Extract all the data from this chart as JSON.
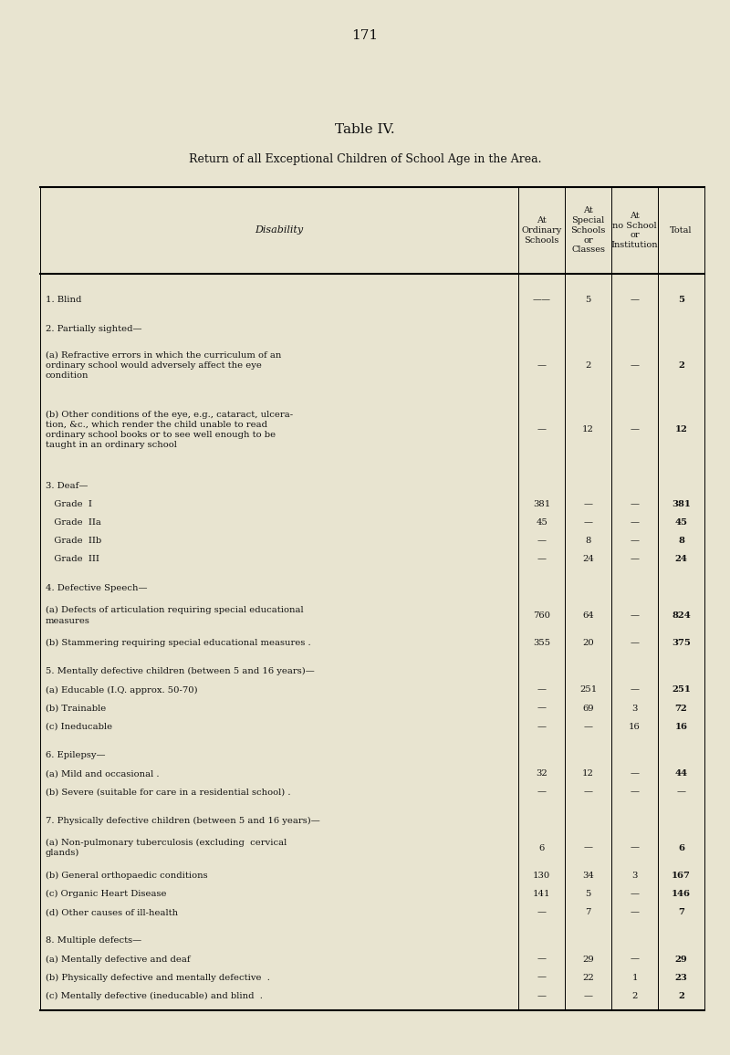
{
  "page_number": "171",
  "table_title": "Table IV.",
  "table_subtitle": "Return of all Exceptional Children of School Age in the Area.",
  "bg_color": "#e8e4d0",
  "text_color": "#111111",
  "rows": [
    {
      "label1": "1. Blind",
      "dots": true,
      "c1": "——",
      "c2": "5",
      "c3": "—",
      "c4": "5",
      "bold_c4": true,
      "section_gap": true,
      "label_lines": 1
    },
    {
      "label1": "2. Partially sighted—",
      "dots": false,
      "c1": "",
      "c2": "",
      "c3": "",
      "c4": "",
      "bold_c4": false,
      "section_gap": true,
      "label_lines": 1
    },
    {
      "label1": "(a) Refractive errors in which the curriculum of an",
      "label2": "ordinary school would adversely affect the eye",
      "label3": "condition",
      "dots": true,
      "c1": "—",
      "c2": "2",
      "c3": "—",
      "c4": "2",
      "bold_c4": true,
      "section_gap": false,
      "label_lines": 3
    },
    {
      "label1": "(b) Other conditions of the eye, e.g., cataract, ulcera-",
      "label2": "tion, &c., which render the child unable to read",
      "label3": "ordinary school books or to see well enough to be",
      "label4": "taught in an ordinary school",
      "dots": true,
      "c1": "—",
      "c2": "12",
      "c3": "—",
      "c4": "12",
      "bold_c4": true,
      "section_gap": false,
      "label_lines": 4
    },
    {
      "label1": "3. Deaf—",
      "dots": false,
      "c1": "",
      "c2": "",
      "c3": "",
      "c4": "",
      "bold_c4": false,
      "section_gap": true,
      "label_lines": 1
    },
    {
      "label1": "   Grade  I",
      "dots": true,
      "c1": "381",
      "c2": "—",
      "c3": "—",
      "c4": "381",
      "bold_c4": true,
      "section_gap": false,
      "label_lines": 1
    },
    {
      "label1": "   Grade  IIa",
      "dots": true,
      "c1": "45",
      "c2": "—",
      "c3": "—",
      "c4": "45",
      "bold_c4": true,
      "section_gap": false,
      "label_lines": 1
    },
    {
      "label1": "   Grade  IIb",
      "dots": true,
      "c1": "—",
      "c2": "8",
      "c3": "—",
      "c4": "8",
      "bold_c4": true,
      "section_gap": false,
      "label_lines": 1
    },
    {
      "label1": "   Grade  III",
      "dots": true,
      "c1": "—",
      "c2": "24",
      "c3": "—",
      "c4": "24",
      "bold_c4": true,
      "section_gap": false,
      "label_lines": 1
    },
    {
      "label1": "4. Defective Speech—",
      "dots": false,
      "c1": "",
      "c2": "",
      "c3": "",
      "c4": "",
      "bold_c4": false,
      "section_gap": true,
      "label_lines": 1
    },
    {
      "label1": "(a) Defects of articulation requiring special educational",
      "label2": "measures",
      "dots": true,
      "c1": "760",
      "c2": "64",
      "c3": "—",
      "c4": "824",
      "bold_c4": true,
      "section_gap": false,
      "label_lines": 2
    },
    {
      "label1": "(b) Stammering requiring special educational measures .",
      "dots": false,
      "c1": "355",
      "c2": "20",
      "c3": "—",
      "c4": "375",
      "bold_c4": true,
      "section_gap": false,
      "label_lines": 1
    },
    {
      "label1": "5. Mentally defective children (between 5 and 16 years)—",
      "dots": false,
      "c1": "",
      "c2": "",
      "c3": "",
      "c4": "",
      "bold_c4": false,
      "section_gap": true,
      "label_lines": 1
    },
    {
      "label1": "(a) Educable (I.Q. approx. 50-70)",
      "dots": true,
      "c1": "—",
      "c2": "251",
      "c3": "—",
      "c4": "251",
      "bold_c4": true,
      "section_gap": false,
      "label_lines": 1
    },
    {
      "label1": "(b) Trainable",
      "dots": true,
      "c1": "—",
      "c2": "69",
      "c3": "3",
      "c4": "72",
      "bold_c4": true,
      "section_gap": false,
      "label_lines": 1
    },
    {
      "label1": "(c) Ineducable",
      "dots": true,
      "c1": "—",
      "c2": "—",
      "c3": "16",
      "c4": "16",
      "bold_c4": true,
      "section_gap": false,
      "label_lines": 1
    },
    {
      "label1": "6. Epilepsy—",
      "dots": false,
      "c1": "",
      "c2": "",
      "c3": "",
      "c4": "",
      "bold_c4": false,
      "section_gap": true,
      "label_lines": 1
    },
    {
      "label1": "(a) Mild and occasional .",
      "dots": false,
      "c1": "32",
      "c2": "12",
      "c3": "—",
      "c4": "44",
      "bold_c4": true,
      "section_gap": false,
      "label_lines": 1
    },
    {
      "label1": "(b) Severe (suitable for care in a residential school) .",
      "dots": false,
      "c1": "—",
      "c2": "—",
      "c3": "—",
      "c4": "—",
      "bold_c4": false,
      "section_gap": false,
      "label_lines": 1
    },
    {
      "label1": "7. Physically defective children (between 5 and 16 years)—",
      "dots": false,
      "c1": "",
      "c2": "",
      "c3": "",
      "c4": "",
      "bold_c4": false,
      "section_gap": true,
      "label_lines": 1
    },
    {
      "label1": "(a) Non-pulmonary tuberculosis (excluding  cervical",
      "label2": "glands)",
      "dots": true,
      "c1": "6",
      "c2": "—",
      "c3": "—",
      "c4": "6",
      "bold_c4": true,
      "section_gap": false,
      "label_lines": 2
    },
    {
      "label1": "(b) General orthopaedic conditions",
      "dots": true,
      "c1": "130",
      "c2": "34",
      "c3": "3",
      "c4": "167",
      "bold_c4": true,
      "section_gap": false,
      "label_lines": 1
    },
    {
      "label1": "(c) Organic Heart Disease",
      "dots": true,
      "c1": "141",
      "c2": "5",
      "c3": "—",
      "c4": "146",
      "bold_c4": true,
      "section_gap": false,
      "label_lines": 1
    },
    {
      "label1": "(d) Other causes of ill-health",
      "dots": true,
      "c1": "—",
      "c2": "7",
      "c3": "—",
      "c4": "7",
      "bold_c4": true,
      "section_gap": false,
      "label_lines": 1
    },
    {
      "label1": "8. Multiple defects—",
      "dots": false,
      "c1": "",
      "c2": "",
      "c3": "",
      "c4": "",
      "bold_c4": false,
      "section_gap": true,
      "label_lines": 1
    },
    {
      "label1": "(a) Mentally defective and deaf",
      "dots": true,
      "c1": "—",
      "c2": "29",
      "c3": "—",
      "c4": "29",
      "bold_c4": true,
      "section_gap": false,
      "label_lines": 1
    },
    {
      "label1": "(b) Physically defective and mentally defective  .",
      "dots": false,
      "c1": "—",
      "c2": "22",
      "c3": "1",
      "c4": "23",
      "bold_c4": true,
      "section_gap": false,
      "label_lines": 1
    },
    {
      "label1": "(c) Mentally defective (ineducable) and blind  .",
      "dots": false,
      "c1": "—",
      "c2": "—",
      "c3": "2",
      "c4": "2",
      "bold_c4": true,
      "section_gap": false,
      "label_lines": 1
    }
  ]
}
